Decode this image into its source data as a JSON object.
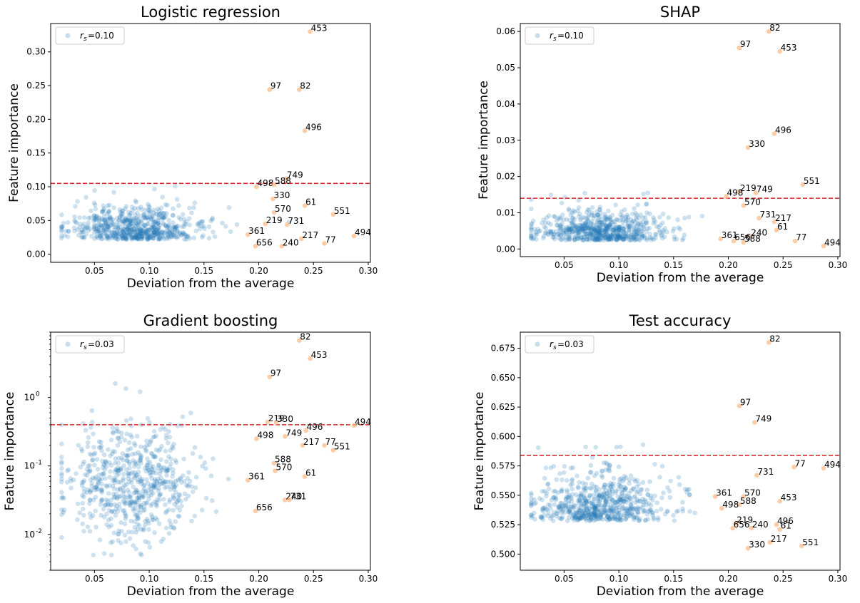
{
  "colors": {
    "points": "#1f77b4",
    "outliers": "#ffbb88",
    "threshold": "#d62728"
  },
  "chart_data": [
    {
      "type": "scatter",
      "title": "Logistic regression",
      "xlabel": "Deviation from the average",
      "ylabel": "Feature importance",
      "xlim": [
        0.01,
        0.302
      ],
      "ylim": [
        -0.012,
        0.342
      ],
      "yscale": "linear",
      "xticks": [
        0.05,
        0.1,
        0.15,
        0.2,
        0.25,
        0.3
      ],
      "xtick_labels": [
        "0.05",
        "0.10",
        "0.15",
        "0.20",
        "0.25",
        "0.30"
      ],
      "yticks": [
        0.0,
        0.05,
        0.1,
        0.15,
        0.2,
        0.25,
        0.3
      ],
      "ytick_labels": [
        "0.00",
        "0.05",
        "0.10",
        "0.15",
        "0.20",
        "0.25",
        "0.30"
      ],
      "threshold": 0.105,
      "legend": {
        "label": "=0.10",
        "symbol": "r",
        "subscript": "s",
        "placement": "upper left"
      },
      "cloud": {
        "x_mean": 0.085,
        "x_sd": 0.03,
        "x_min": 0.02,
        "x_max": 0.24,
        "y_mean": 0.032,
        "y_sd": 0.025,
        "y_min": 0.002,
        "y_max": 0.175,
        "count": 650
      },
      "outliers": [
        {
          "label": "453",
          "x": 0.247,
          "y": 0.33
        },
        {
          "label": "97",
          "x": 0.21,
          "y": 0.244
        },
        {
          "label": "82",
          "x": 0.237,
          "y": 0.244
        },
        {
          "label": "496",
          "x": 0.242,
          "y": 0.183
        },
        {
          "label": "749",
          "x": 0.225,
          "y": 0.112
        },
        {
          "label": "498",
          "x": 0.198,
          "y": 0.1
        },
        {
          "label": "588",
          "x": 0.214,
          "y": 0.103
        },
        {
          "label": "330",
          "x": 0.213,
          "y": 0.082
        },
        {
          "label": "61",
          "x": 0.242,
          "y": 0.072
        },
        {
          "label": "570",
          "x": 0.214,
          "y": 0.062
        },
        {
          "label": "551",
          "x": 0.268,
          "y": 0.059
        },
        {
          "label": "219",
          "x": 0.206,
          "y": 0.045
        },
        {
          "label": "731",
          "x": 0.226,
          "y": 0.044
        },
        {
          "label": "361",
          "x": 0.19,
          "y": 0.029
        },
        {
          "label": "217",
          "x": 0.239,
          "y": 0.023
        },
        {
          "label": "494",
          "x": 0.287,
          "y": 0.027
        },
        {
          "label": "77",
          "x": 0.26,
          "y": 0.016
        },
        {
          "label": "656",
          "x": 0.197,
          "y": 0.012
        },
        {
          "label": "240",
          "x": 0.221,
          "y": 0.012
        }
      ]
    },
    {
      "type": "scatter",
      "title": "SHAP",
      "xlabel": "Deviation from the average",
      "ylabel": "Feature importance",
      "xlim": [
        0.01,
        0.302
      ],
      "ylim": [
        -0.0021,
        0.0622
      ],
      "yscale": "linear",
      "xticks": [
        0.05,
        0.1,
        0.15,
        0.2,
        0.25,
        0.3
      ],
      "xtick_labels": [
        "0.05",
        "0.10",
        "0.15",
        "0.20",
        "0.25",
        "0.30"
      ],
      "yticks": [
        0.0,
        0.01,
        0.02,
        0.03,
        0.04,
        0.05,
        0.06
      ],
      "ytick_labels": [
        "0.00",
        "0.01",
        "0.02",
        "0.03",
        "0.04",
        "0.05",
        "0.06"
      ],
      "threshold": 0.014,
      "legend": {
        "label": "=0.10",
        "symbol": "r",
        "subscript": "s",
        "placement": "upper left"
      },
      "cloud": {
        "x_mean": 0.085,
        "x_sd": 0.03,
        "x_min": 0.02,
        "x_max": 0.24,
        "y_mean": 0.004,
        "y_sd": 0.004,
        "y_min": 0.0003,
        "y_max": 0.031,
        "count": 650
      },
      "outliers": [
        {
          "label": "82",
          "x": 0.237,
          "y": 0.06
        },
        {
          "label": "97",
          "x": 0.21,
          "y": 0.0555
        },
        {
          "label": "453",
          "x": 0.247,
          "y": 0.0545
        },
        {
          "label": "496",
          "x": 0.242,
          "y": 0.0318
        },
        {
          "label": "330",
          "x": 0.218,
          "y": 0.028
        },
        {
          "label": "551",
          "x": 0.268,
          "y": 0.0178
        },
        {
          "label": "219",
          "x": 0.21,
          "y": 0.0158
        },
        {
          "label": "749",
          "x": 0.225,
          "y": 0.0155
        },
        {
          "label": "498",
          "x": 0.198,
          "y": 0.0145
        },
        {
          "label": "570",
          "x": 0.214,
          "y": 0.012
        },
        {
          "label": "731",
          "x": 0.228,
          "y": 0.0085
        },
        {
          "label": "217",
          "x": 0.242,
          "y": 0.0075
        },
        {
          "label": "61",
          "x": 0.244,
          "y": 0.0052
        },
        {
          "label": "240",
          "x": 0.22,
          "y": 0.0035
        },
        {
          "label": "361",
          "x": 0.193,
          "y": 0.0028
        },
        {
          "label": "656",
          "x": 0.205,
          "y": 0.0022
        },
        {
          "label": "588",
          "x": 0.214,
          "y": 0.0018
        },
        {
          "label": "77",
          "x": 0.261,
          "y": 0.0022
        },
        {
          "label": "494",
          "x": 0.287,
          "y": 0.0008
        }
      ]
    },
    {
      "type": "scatter",
      "title": "Gradient boosting",
      "xlabel": "Deviation from the average",
      "ylabel": "Feature importance",
      "xlim": [
        0.01,
        0.302
      ],
      "ylim": [
        0.003,
        9
      ],
      "yscale": "log",
      "xticks": [
        0.05,
        0.1,
        0.15,
        0.2,
        0.25,
        0.3
      ],
      "xtick_labels": [
        "0.05",
        "0.10",
        "0.15",
        "0.20",
        "0.25",
        "0.30"
      ],
      "yticks": [
        0.01,
        0.1,
        1
      ],
      "ytick_labels": [
        "10",
        "10",
        "10"
      ],
      "ytick_exponents": [
        "-2",
        "-1",
        "0"
      ],
      "threshold": 0.4,
      "legend": {
        "label": "=0.03",
        "symbol": "r",
        "subscript": "s",
        "placement": "upper left"
      },
      "cloud": {
        "x_mean": 0.085,
        "x_sd": 0.03,
        "x_min": 0.02,
        "x_max": 0.24,
        "y_logmean": -1.25,
        "y_logsd": 0.42,
        "y_min": 0.005,
        "y_max": 1.9,
        "count": 650
      },
      "outliers": [
        {
          "label": "82",
          "x": 0.237,
          "y": 6.8
        },
        {
          "label": "453",
          "x": 0.247,
          "y": 3.7
        },
        {
          "label": "97",
          "x": 0.21,
          "y": 2.0
        },
        {
          "label": "219",
          "x": 0.208,
          "y": 0.44
        },
        {
          "label": "330",
          "x": 0.216,
          "y": 0.43
        },
        {
          "label": "494",
          "x": 0.287,
          "y": 0.39
        },
        {
          "label": "496",
          "x": 0.243,
          "y": 0.33
        },
        {
          "label": "749",
          "x": 0.224,
          "y": 0.27
        },
        {
          "label": "498",
          "x": 0.198,
          "y": 0.25
        },
        {
          "label": "217",
          "x": 0.24,
          "y": 0.2
        },
        {
          "label": "77",
          "x": 0.26,
          "y": 0.2
        },
        {
          "label": "551",
          "x": 0.268,
          "y": 0.17
        },
        {
          "label": "588",
          "x": 0.214,
          "y": 0.11
        },
        {
          "label": "570",
          "x": 0.215,
          "y": 0.085
        },
        {
          "label": "61",
          "x": 0.242,
          "y": 0.07
        },
        {
          "label": "361",
          "x": 0.19,
          "y": 0.062
        },
        {
          "label": "240",
          "x": 0.224,
          "y": 0.032
        },
        {
          "label": "731",
          "x": 0.228,
          "y": 0.032
        },
        {
          "label": "656",
          "x": 0.197,
          "y": 0.022
        }
      ]
    },
    {
      "type": "scatter",
      "title": "Test accuracy",
      "xlabel": "Deviation from the average",
      "ylabel": "Feature importance",
      "xlim": [
        0.01,
        0.302
      ],
      "ylim": [
        0.4863,
        0.6887
      ],
      "yscale": "linear",
      "xticks": [
        0.05,
        0.1,
        0.15,
        0.2,
        0.25,
        0.3
      ],
      "xtick_labels": [
        "0.05",
        "0.10",
        "0.15",
        "0.20",
        "0.25",
        "0.30"
      ],
      "yticks": [
        0.5,
        0.525,
        0.55,
        0.575,
        0.6,
        0.625,
        0.65,
        0.675
      ],
      "ytick_labels": [
        "0.500",
        "0.525",
        "0.550",
        "0.575",
        "0.600",
        "0.625",
        "0.650",
        "0.675"
      ],
      "threshold": 0.584,
      "legend": {
        "label": "=0.03",
        "symbol": "r",
        "subscript": "s",
        "placement": "upper left"
      },
      "cloud": {
        "x_mean": 0.085,
        "x_sd": 0.03,
        "x_min": 0.02,
        "x_max": 0.24,
        "y_mean": 0.537,
        "y_sd": 0.022,
        "y_min": 0.489,
        "y_max": 0.638,
        "count": 650
      },
      "outliers": [
        {
          "label": "82",
          "x": 0.237,
          "y": 0.68
        },
        {
          "label": "97",
          "x": 0.21,
          "y": 0.626
        },
        {
          "label": "749",
          "x": 0.224,
          "y": 0.612
        },
        {
          "label": "77",
          "x": 0.26,
          "y": 0.574
        },
        {
          "label": "494",
          "x": 0.287,
          "y": 0.573
        },
        {
          "label": "731",
          "x": 0.226,
          "y": 0.567
        },
        {
          "label": "361",
          "x": 0.188,
          "y": 0.549
        },
        {
          "label": "570",
          "x": 0.214,
          "y": 0.549
        },
        {
          "label": "588",
          "x": 0.21,
          "y": 0.542
        },
        {
          "label": "453",
          "x": 0.247,
          "y": 0.545
        },
        {
          "label": "498",
          "x": 0.194,
          "y": 0.539
        },
        {
          "label": "219",
          "x": 0.207,
          "y": 0.526
        },
        {
          "label": "496",
          "x": 0.244,
          "y": 0.525
        },
        {
          "label": "656",
          "x": 0.204,
          "y": 0.522
        },
        {
          "label": "240",
          "x": 0.221,
          "y": 0.522
        },
        {
          "label": "61",
          "x": 0.247,
          "y": 0.521
        },
        {
          "label": "217",
          "x": 0.238,
          "y": 0.51
        },
        {
          "label": "330",
          "x": 0.218,
          "y": 0.505
        },
        {
          "label": "551",
          "x": 0.267,
          "y": 0.507
        }
      ]
    }
  ]
}
